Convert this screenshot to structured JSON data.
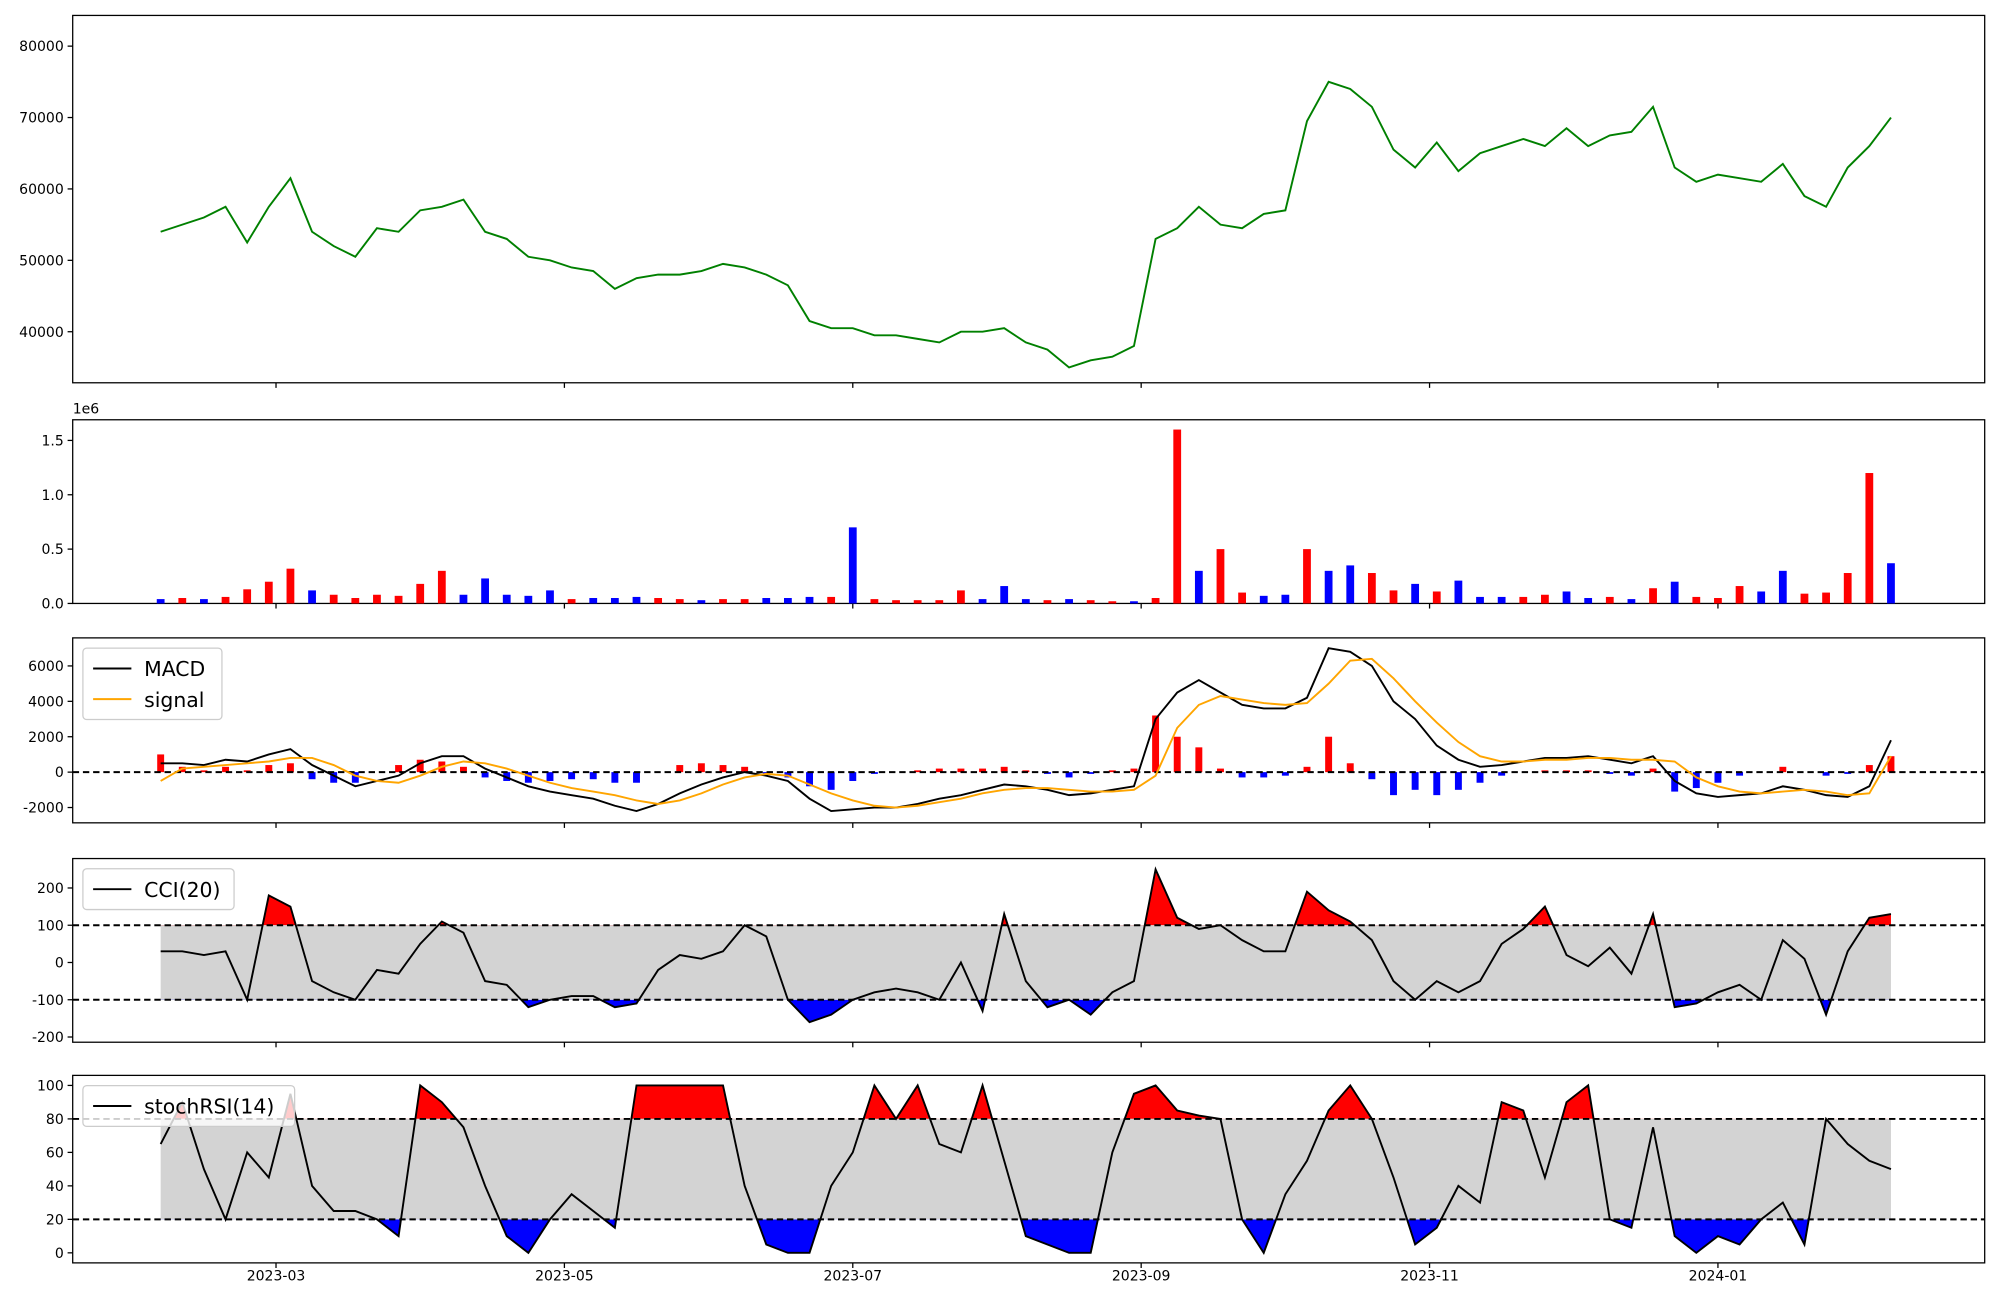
{
  "chart_data": [
    {
      "type": "line",
      "ylim": [
        32850,
        84300
      ],
      "yticks": [
        40000,
        50000,
        60000,
        70000,
        80000
      ],
      "series": [
        {
          "color": "#008000",
          "values": [
            54000,
            55000,
            56000,
            57500,
            52500,
            57500,
            61500,
            54000,
            52000,
            50500,
            54500,
            54000,
            57000,
            57500,
            58500,
            54000,
            53000,
            50500,
            50000,
            49000,
            48500,
            46000,
            47500,
            48000,
            48000,
            48500,
            49500,
            49000,
            48000,
            46500,
            41500,
            40500,
            40500,
            39500,
            39500,
            39000,
            38500,
            40000,
            40000,
            40500,
            38500,
            37500,
            35000,
            36000,
            36500,
            38000,
            53000,
            54500,
            57500,
            55000,
            54500,
            56500,
            57000,
            69500,
            75000,
            74000,
            71500,
            65500,
            63000,
            66500,
            62500,
            65000,
            66000,
            67000,
            66000,
            68500,
            66000,
            67500,
            68000,
            71500,
            63000,
            61000,
            62000,
            61500,
            61000,
            63500,
            59000,
            57500,
            63000,
            66000,
            70000
          ]
        }
      ]
    },
    {
      "type": "bar",
      "ylim": [
        0,
        1690000
      ],
      "offset_label": "1e6",
      "yticks": [
        {
          "value": 0,
          "label": "0.0"
        },
        {
          "value": 500000,
          "label": "0.5"
        },
        {
          "value": 1000000,
          "label": "1.0"
        },
        {
          "value": 1500000,
          "label": "1.5"
        }
      ],
      "series": [
        {
          "values": [
            40000,
            50000,
            40000,
            60000,
            130000,
            200000,
            320000,
            120000,
            80000,
            50000,
            80000,
            70000,
            180000,
            300000,
            80000,
            230000,
            80000,
            70000,
            120000,
            40000,
            50000,
            50000,
            60000,
            50000,
            40000,
            30000,
            40000,
            40000,
            50000,
            50000,
            60000,
            60000,
            700000,
            40000,
            30000,
            30000,
            30000,
            120000,
            40000,
            160000,
            40000,
            30000,
            40000,
            30000,
            20000,
            20000,
            50000,
            1600000,
            300000,
            500000,
            100000,
            70000,
            80000,
            500000,
            300000,
            350000,
            280000,
            120000,
            180000,
            110000,
            210000,
            60000,
            60000,
            60000,
            80000,
            110000,
            50000,
            60000,
            40000,
            140000,
            200000,
            60000,
            50000,
            160000,
            110000,
            300000,
            90000,
            100000,
            280000,
            1200000,
            370000
          ],
          "colors": [
            "blue",
            "red",
            "blue",
            "red",
            "red",
            "red",
            "red",
            "blue",
            "red",
            "red",
            "red",
            "red",
            "red",
            "red",
            "blue",
            "blue",
            "blue",
            "blue",
            "blue",
            "red",
            "blue",
            "blue",
            "blue",
            "red",
            "red",
            "blue",
            "red",
            "red",
            "blue",
            "blue",
            "blue",
            "red",
            "blue",
            "red",
            "red",
            "red",
            "red",
            "red",
            "blue",
            "blue",
            "blue",
            "red",
            "blue",
            "red",
            "red",
            "blue",
            "red",
            "red",
            "blue",
            "red",
            "red",
            "blue",
            "blue",
            "red",
            "blue",
            "blue",
            "red",
            "red",
            "blue",
            "red",
            "blue",
            "blue",
            "blue",
            "red",
            "red",
            "blue",
            "blue",
            "red",
            "blue",
            "red",
            "blue",
            "red",
            "red",
            "red",
            "blue",
            "blue",
            "red",
            "red",
            "red",
            "red",
            "blue"
          ]
        }
      ]
    },
    {
      "type": "macd",
      "ylim": [
        -2865,
        7585
      ],
      "yticks": [
        -2000,
        0,
        2000,
        4000,
        6000
      ],
      "hlines": [
        0
      ],
      "series": [
        {
          "name": "MACD",
          "color": "black",
          "values": [
            500,
            500,
            400,
            700,
            600,
            1000,
            1300,
            400,
            -200,
            -800,
            -500,
            -200,
            500,
            900,
            900,
            200,
            -300,
            -800,
            -1100,
            -1300,
            -1500,
            -1900,
            -2200,
            -1800,
            -1200,
            -700,
            -300,
            0,
            -200,
            -500,
            -1500,
            -2200,
            -2100,
            -2000,
            -2000,
            -1800,
            -1500,
            -1300,
            -1000,
            -700,
            -800,
            -1000,
            -1300,
            -1200,
            -1000,
            -800,
            3000,
            4500,
            5200,
            4500,
            3800,
            3600,
            3600,
            4200,
            7000,
            6800,
            6000,
            4000,
            3000,
            1500,
            700,
            300,
            400,
            600,
            800,
            800,
            900,
            700,
            500,
            900,
            -500,
            -1200,
            -1400,
            -1300,
            -1200,
            -800,
            -1000,
            -1300,
            -1400,
            -800,
            1800
          ]
        },
        {
          "name": "signal",
          "color": "orange",
          "values": [
            -500,
            200,
            300,
            400,
            500,
            600,
            800,
            800,
            400,
            -200,
            -500,
            -600,
            -200,
            300,
            600,
            500,
            200,
            -200,
            -600,
            -900,
            -1100,
            -1300,
            -1600,
            -1800,
            -1600,
            -1200,
            -700,
            -300,
            -100,
            -200,
            -700,
            -1200,
            -1600,
            -1900,
            -2000,
            -1900,
            -1700,
            -1500,
            -1200,
            -1000,
            -900,
            -900,
            -1000,
            -1100,
            -1100,
            -1000,
            -200,
            2500,
            3800,
            4300,
            4100,
            3900,
            3800,
            3900,
            5000,
            6300,
            6400,
            5300,
            4000,
            2800,
            1700,
            900,
            600,
            600,
            700,
            700,
            800,
            800,
            700,
            700,
            600,
            -300,
            -800,
            -1100,
            -1200,
            -1100,
            -1000,
            -1100,
            -1300,
            -1200,
            900
          ]
        }
      ],
      "histogram": {
        "positive_color": "red",
        "negative_color": "blue",
        "values": [
          1000,
          300,
          100,
          300,
          100,
          400,
          500,
          -400,
          -600,
          -600,
          0,
          400,
          700,
          600,
          300,
          -300,
          -500,
          -600,
          -500,
          -400,
          -400,
          -600,
          -600,
          0,
          400,
          500,
          400,
          300,
          -100,
          -300,
          -800,
          -1000,
          -500,
          -100,
          0,
          100,
          200,
          200,
          200,
          300,
          100,
          -100,
          -300,
          -100,
          100,
          200,
          3200,
          2000,
          1400,
          200,
          -300,
          -300,
          -200,
          300,
          2000,
          500,
          -400,
          -1300,
          -1000,
          -1300,
          -1000,
          -600,
          -200,
          0,
          100,
          100,
          100,
          -100,
          -200,
          200,
          -1100,
          -900,
          -600,
          -200,
          0,
          300,
          0,
          -200,
          -100,
          400,
          900
        ]
      }
    },
    {
      "type": "oscillator",
      "ylim": [
        -214,
        279
      ],
      "yticks": [
        -200,
        -100,
        0,
        100,
        200
      ],
      "bands": [
        -100,
        100
      ],
      "band_color": "lightgray",
      "upper_fill": "red",
      "lower_fill": "blue",
      "series": [
        {
          "name": "CCI(20)",
          "color": "black",
          "values": [
            30,
            30,
            20,
            30,
            -100,
            180,
            150,
            -50,
            -80,
            -100,
            -20,
            -30,
            50,
            110,
            80,
            -50,
            -60,
            -120,
            -100,
            -90,
            -90,
            -120,
            -110,
            -20,
            20,
            10,
            30,
            100,
            70,
            -100,
            -160,
            -140,
            -100,
            -80,
            -70,
            -80,
            -100,
            0,
            -130,
            130,
            -50,
            -120,
            -100,
            -140,
            -80,
            -50,
            250,
            120,
            90,
            100,
            60,
            30,
            30,
            190,
            140,
            110,
            60,
            -50,
            -100,
            -50,
            -80,
            -50,
            50,
            90,
            150,
            20,
            -10,
            40,
            -30,
            130,
            -120,
            -110,
            -80,
            -60,
            -100,
            60,
            10,
            -140,
            30,
            120,
            130
          ]
        }
      ]
    },
    {
      "type": "oscillator",
      "ylim": [
        -6,
        106
      ],
      "yticks": [
        0,
        20,
        40,
        60,
        80,
        100
      ],
      "bands": [
        20,
        80
      ],
      "band_color": "lightgray",
      "upper_fill": "red",
      "lower_fill": "blue",
      "series": [
        {
          "name": "stochRSI(14)",
          "color": "black",
          "values": [
            65,
            90,
            50,
            20,
            60,
            45,
            95,
            40,
            25,
            25,
            20,
            10,
            100,
            90,
            75,
            40,
            10,
            0,
            20,
            35,
            25,
            15,
            100,
            100,
            100,
            100,
            100,
            40,
            5,
            0,
            0,
            40,
            60,
            100,
            80,
            100,
            65,
            60,
            100,
            55,
            10,
            5,
            0,
            0,
            60,
            95,
            100,
            85,
            82,
            80,
            20,
            0,
            35,
            55,
            85,
            100,
            80,
            45,
            5,
            15,
            40,
            30,
            90,
            85,
            45,
            90,
            100,
            20,
            15,
            75,
            10,
            0,
            10,
            5,
            20,
            30,
            5,
            80,
            65,
            55,
            50
          ]
        }
      ],
      "x": [
        2.2,
        2.35,
        2.5,
        2.65,
        2.8,
        2.95,
        3.1,
        3.25,
        3.4,
        3.55,
        3.7,
        3.85,
        4,
        4.15,
        4.3,
        4.45,
        4.6,
        4.75,
        4.9,
        5.05,
        5.2,
        5.35,
        5.5,
        5.65,
        5.8,
        5.95,
        6.1,
        6.25,
        6.4,
        6.55,
        6.7,
        6.85,
        7,
        7.15,
        7.3,
        7.45,
        7.6,
        7.75,
        7.9,
        8.05,
        8.2,
        8.35,
        8.5,
        8.65,
        8.8,
        8.95,
        9.1,
        9.25,
        9.4,
        9.55,
        9.7,
        9.85,
        10,
        10.15,
        10.3,
        10.45,
        10.6,
        10.75,
        10.9,
        11.05,
        11.2,
        11.35,
        11.5,
        11.65,
        11.8,
        11.95,
        12.1,
        12.25,
        12.4,
        12.55,
        12.7,
        12.85,
        13,
        13.15,
        13.3,
        13.45,
        13.6,
        13.75,
        13.9,
        14.05,
        14.2
      ],
      "xlim": [
        1.59,
        14.85
      ],
      "xticks": [
        {
          "value": 3,
          "label": "2023-03"
        },
        {
          "value": 5,
          "label": "2023-05"
        },
        {
          "value": 7,
          "label": "2023-07"
        },
        {
          "value": 9,
          "label": "2023-09"
        },
        {
          "value": 11,
          "label": "2023-11"
        },
        {
          "value": 13,
          "label": "2024-01"
        }
      ]
    }
  ]
}
